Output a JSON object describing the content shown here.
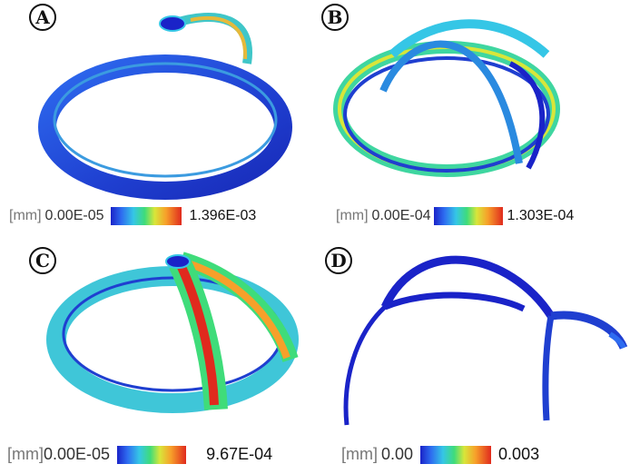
{
  "panels": [
    {
      "label": "A",
      "unit": "[mm]",
      "min": "0.00E-05",
      "max": "1.396E-03"
    },
    {
      "label": "B",
      "unit": "[mm]",
      "min": "0.00E-04",
      "max": "1.303E-04"
    },
    {
      "label": "C",
      "unit": "[mm]",
      "min": "0.00E-05",
      "max": "9.67E-04"
    },
    {
      "label": "D",
      "unit": "[mm]",
      "min": "0.00",
      "max": "0.003"
    }
  ],
  "colorscale": [
    "#1a23c8",
    "#2e6cf0",
    "#35c6e6",
    "#3fdc7a",
    "#d8e63a",
    "#f7a02a",
    "#e02a1e"
  ]
}
